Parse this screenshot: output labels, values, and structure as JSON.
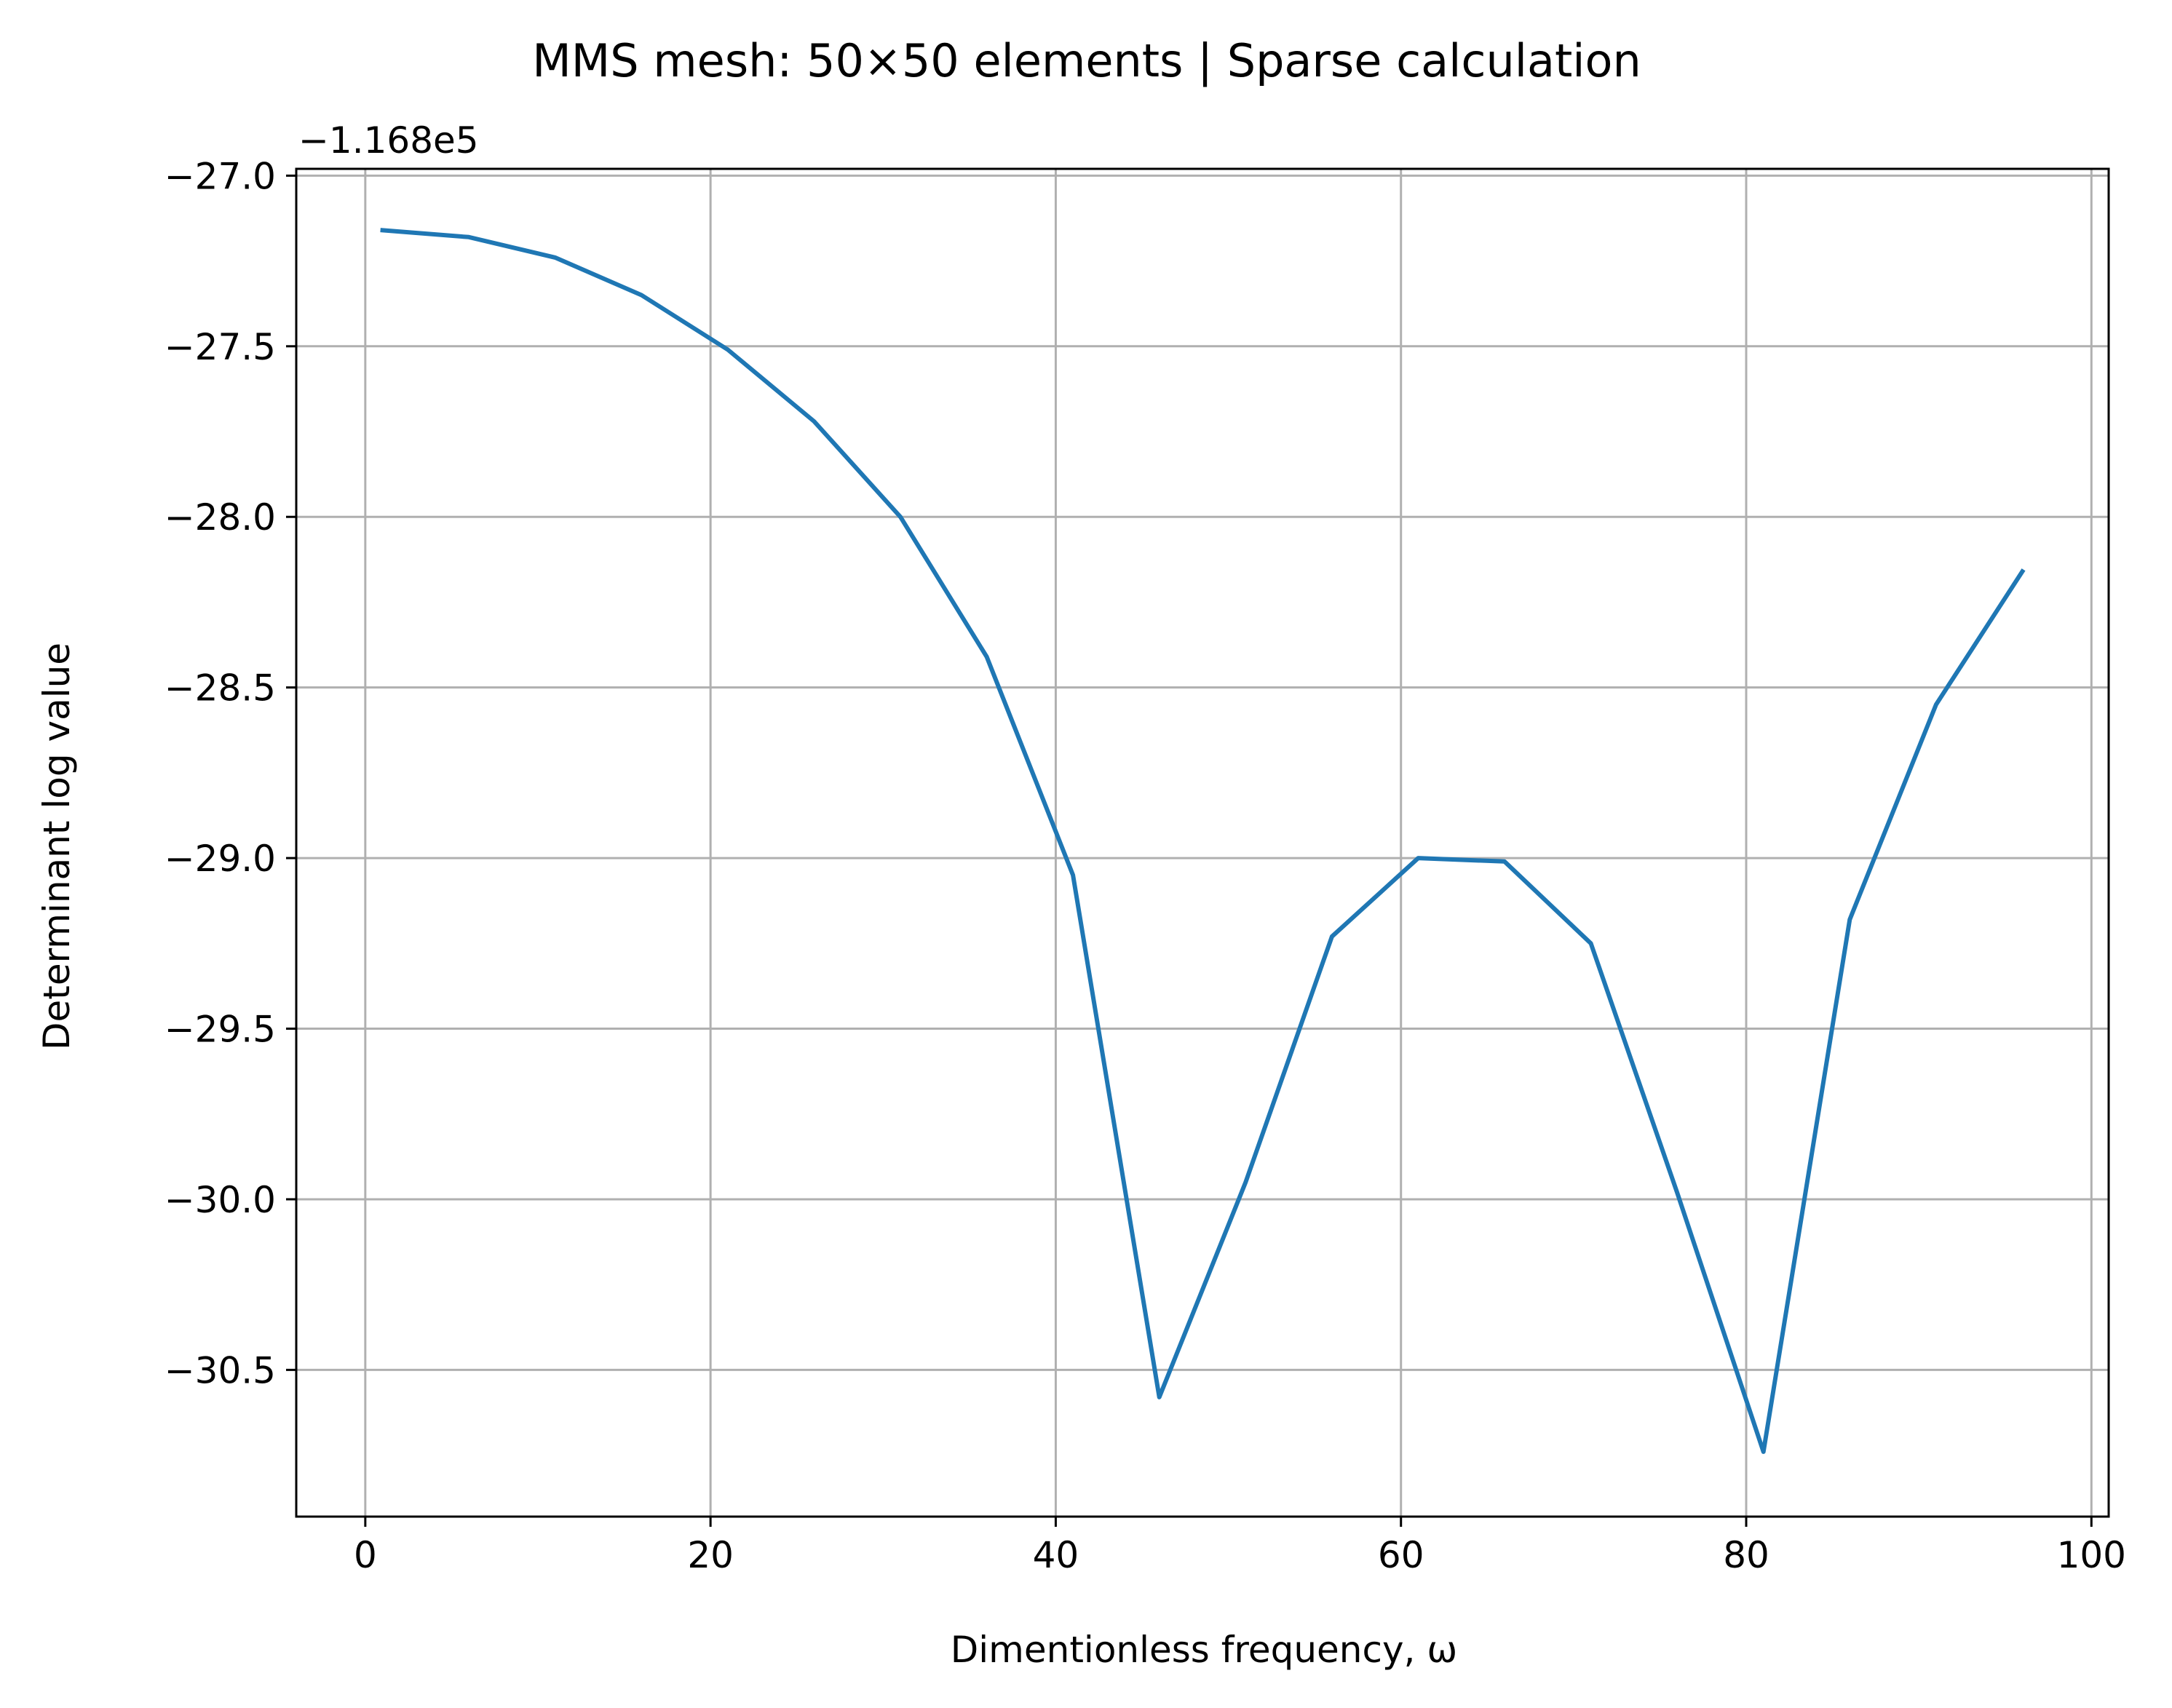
{
  "chart_data": {
    "type": "line",
    "title": "MMS mesh: 50×50 elements | Sparse calculation",
    "xlabel": "Dimentionless frequency, ω",
    "ylabel": "Determinant log value",
    "y_offset_label": "−1.168e5",
    "xlim": [
      -4,
      101
    ],
    "ylim": [
      -30.93,
      -26.98
    ],
    "grid": true,
    "x_ticks": [
      {
        "value": 0,
        "label": "0"
      },
      {
        "value": 20,
        "label": "20"
      },
      {
        "value": 40,
        "label": "40"
      },
      {
        "value": 60,
        "label": "60"
      },
      {
        "value": 80,
        "label": "80"
      },
      {
        "value": 100,
        "label": "100"
      }
    ],
    "y_ticks": [
      {
        "value": -27.0,
        "label": "−27.0"
      },
      {
        "value": -27.5,
        "label": "−27.5"
      },
      {
        "value": -28.0,
        "label": "−28.0"
      },
      {
        "value": -28.5,
        "label": "−28.5"
      },
      {
        "value": -29.0,
        "label": "−29.0"
      },
      {
        "value": -29.5,
        "label": "−29.5"
      },
      {
        "value": -30.0,
        "label": "−30.0"
      },
      {
        "value": -30.5,
        "label": "−30.5"
      }
    ],
    "series": [
      {
        "color": "#1f77b4",
        "x": [
          1,
          6,
          11,
          16,
          21,
          26,
          31,
          36,
          41,
          46,
          51,
          56,
          61,
          66,
          71,
          76,
          81,
          86,
          91,
          96
        ],
        "y": [
          -27.16,
          -27.18,
          -27.24,
          -27.35,
          -27.51,
          -27.72,
          -28.0,
          -28.41,
          -29.05,
          -30.58,
          -29.95,
          -29.23,
          -29.0,
          -29.01,
          -29.25,
          -29.98,
          -30.74,
          -29.18,
          -28.55,
          -28.16
        ]
      }
    ]
  }
}
